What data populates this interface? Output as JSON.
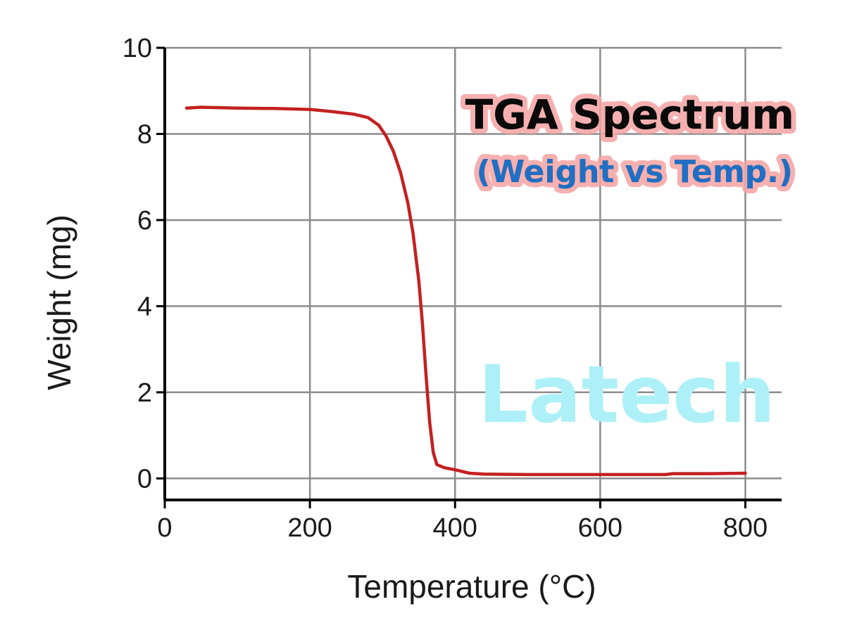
{
  "chart_data": {
    "type": "line",
    "title": "TGA Spectrum",
    "subtitle": "(Weight vs Temp.)",
    "watermark": "Latech",
    "xlabel": "Temperature (°C)",
    "ylabel": "Weight (mg)",
    "xlim": [
      0,
      850
    ],
    "ylim": [
      -0.5,
      10
    ],
    "x_ticks": [
      0,
      200,
      400,
      600,
      800
    ],
    "y_ticks": [
      0,
      2,
      4,
      6,
      8,
      10
    ],
    "grid": true,
    "colors": {
      "line": "#c42020",
      "subtitle": "#1f6fc4",
      "title_glow": "#f5a3a3",
      "watermark": "#aef0f8",
      "grid": "#8c8c8c"
    },
    "series": [
      {
        "values": [
          [
            30,
            8.6
          ],
          [
            50,
            8.62
          ],
          [
            100,
            8.6
          ],
          [
            150,
            8.59
          ],
          [
            200,
            8.57
          ],
          [
            230,
            8.52
          ],
          [
            260,
            8.46
          ],
          [
            280,
            8.38
          ],
          [
            295,
            8.2
          ],
          [
            305,
            7.95
          ],
          [
            315,
            7.6
          ],
          [
            325,
            7.1
          ],
          [
            335,
            6.4
          ],
          [
            342,
            5.7
          ],
          [
            350,
            4.6
          ],
          [
            355,
            3.6
          ],
          [
            360,
            2.4
          ],
          [
            365,
            1.3
          ],
          [
            370,
            0.6
          ],
          [
            375,
            0.32
          ],
          [
            385,
            0.25
          ],
          [
            400,
            0.2
          ],
          [
            420,
            0.12
          ],
          [
            440,
            0.1
          ],
          [
            500,
            0.09
          ],
          [
            600,
            0.09
          ],
          [
            690,
            0.09
          ],
          [
            700,
            0.11
          ],
          [
            750,
            0.11
          ],
          [
            800,
            0.12
          ]
        ]
      }
    ]
  }
}
